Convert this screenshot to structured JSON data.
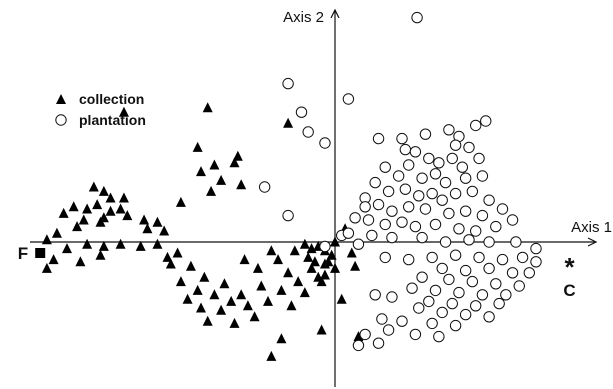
{
  "chart_data": {
    "type": "scatter",
    "xlabel": "Axis 1",
    "ylabel": "Axis 2",
    "grid": false,
    "legend": {
      "placement": "top-left",
      "entries": [
        {
          "name": "collection",
          "marker": "triangle",
          "color": "#000000"
        },
        {
          "name": "plantation",
          "marker": "circle",
          "color": "#ffffff"
        }
      ]
    },
    "poles": [
      {
        "label": "F",
        "marker": "square",
        "x": -8.8,
        "y": -0.25
      },
      {
        "label": "C",
        "marker": "asterisk",
        "x": 7.0,
        "y": -0.55
      }
    ],
    "series": [
      {
        "name": "collection",
        "points": [
          [
            -6.3,
            2.95
          ],
          [
            -3.8,
            3.05
          ],
          [
            -1.4,
            2.7
          ],
          [
            -4.1,
            2.15
          ],
          [
            -3.6,
            1.75
          ],
          [
            -3.0,
            1.8
          ],
          [
            -2.9,
            1.95
          ],
          [
            -3.4,
            1.4
          ],
          [
            -4.0,
            1.6
          ],
          [
            -3.7,
            1.15
          ],
          [
            -2.8,
            1.3
          ],
          [
            -4.6,
            0.9
          ],
          [
            -7.2,
            1.25
          ],
          [
            -6.9,
            1.15
          ],
          [
            -7.1,
            0.85
          ],
          [
            -6.7,
            1.0
          ],
          [
            -7.4,
            0.75
          ],
          [
            -6.3,
            1.0
          ],
          [
            -6.9,
            0.55
          ],
          [
            -7.8,
            0.8
          ],
          [
            -6.7,
            0.7
          ],
          [
            -6.4,
            0.75
          ],
          [
            -8.1,
            0.65
          ],
          [
            -6.2,
            0.6
          ],
          [
            -7.5,
            0.5
          ],
          [
            -7.0,
            0.45
          ],
          [
            -5.7,
            0.5
          ],
          [
            -5.3,
            0.45
          ],
          [
            -7.7,
            0.35
          ],
          [
            -8.3,
            0.2
          ],
          [
            -5.6,
            0.3
          ],
          [
            -5.1,
            0.25
          ],
          [
            -8.6,
            0.05
          ],
          [
            -8.0,
            -0.15
          ],
          [
            -7.4,
            -0.05
          ],
          [
            -6.9,
            -0.1
          ],
          [
            -6.4,
            -0.05
          ],
          [
            -5.8,
            -0.1
          ],
          [
            -5.3,
            -0.05
          ],
          [
            -8.4,
            -0.4
          ],
          [
            -7.6,
            -0.45
          ],
          [
            -7.0,
            -0.3
          ],
          [
            -8.6,
            -0.6
          ],
          [
            -5.0,
            -0.35
          ],
          [
            -4.3,
            -0.55
          ],
          [
            -4.9,
            -0.5
          ],
          [
            -3.9,
            -0.8
          ],
          [
            -4.6,
            -0.9
          ],
          [
            -3.3,
            -0.95
          ],
          [
            -4.1,
            -1.1
          ],
          [
            -3.6,
            -1.2
          ],
          [
            -4.4,
            -1.3
          ],
          [
            -2.8,
            -1.2
          ],
          [
            -3.1,
            -1.35
          ],
          [
            -4.0,
            -1.5
          ],
          [
            -3.4,
            -1.55
          ],
          [
            -2.6,
            -1.45
          ],
          [
            -3.8,
            -1.8
          ],
          [
            -3.0,
            -1.85
          ],
          [
            -2.3,
            -0.6
          ],
          [
            -2.7,
            -0.4
          ],
          [
            -4.7,
            -0.25
          ],
          [
            -2.2,
            -1.0
          ],
          [
            -2.0,
            -1.35
          ],
          [
            -1.7,
            -0.4
          ],
          [
            -1.4,
            -0.7
          ],
          [
            -1.6,
            -1.1
          ],
          [
            -1.1,
            -0.9
          ],
          [
            -1.3,
            -1.45
          ],
          [
            -0.9,
            -1.15
          ],
          [
            -0.7,
            -0.6
          ],
          [
            -0.5,
            -0.8
          ],
          [
            -0.8,
            -0.35
          ],
          [
            -0.3,
            -0.5
          ],
          [
            -0.4,
            -0.9
          ],
          [
            -1.9,
            -0.2
          ],
          [
            -1.2,
            -0.2
          ],
          [
            -2.4,
            -1.7
          ],
          [
            -0.9,
            -0.05
          ],
          [
            -0.7,
            -0.15
          ],
          [
            -0.5,
            -0.1
          ],
          [
            -0.3,
            -0.2
          ],
          [
            -0.2,
            -0.45
          ],
          [
            0.0,
            -0.6
          ],
          [
            -0.1,
            -0.3
          ],
          [
            -0.6,
            -0.45
          ],
          [
            -0.3,
            -0.75
          ],
          [
            0.3,
            0.3
          ],
          [
            0.5,
            -0.25
          ],
          [
            0.6,
            -0.55
          ],
          [
            0.2,
            -1.3
          ],
          [
            0.0,
            0.0
          ],
          [
            -0.4,
            -2.0
          ],
          [
            -1.6,
            -2.2
          ],
          [
            0.7,
            -2.15
          ],
          [
            -1.9,
            -2.6
          ]
        ]
      },
      {
        "name": "plantation",
        "points": [
          [
            2.45,
            5.1
          ],
          [
            -1.4,
            3.6
          ],
          [
            0.4,
            3.25
          ],
          [
            -1.0,
            2.95
          ],
          [
            -0.8,
            2.5
          ],
          [
            -0.3,
            2.25
          ],
          [
            2.1,
            2.1
          ],
          [
            -2.1,
            1.25
          ],
          [
            -1.4,
            0.6
          ],
          [
            0.9,
            1.0
          ],
          [
            0.2,
            0.15
          ],
          [
            -0.3,
            -0.1
          ],
          [
            1.3,
            2.35
          ],
          [
            2.0,
            2.35
          ],
          [
            2.7,
            2.45
          ],
          [
            3.4,
            2.55
          ],
          [
            3.7,
            2.4
          ],
          [
            4.2,
            2.65
          ],
          [
            4.5,
            2.75
          ],
          [
            3.6,
            2.2
          ],
          [
            4.0,
            2.15
          ],
          [
            2.4,
            2.05
          ],
          [
            2.2,
            1.75
          ],
          [
            2.8,
            1.9
          ],
          [
            3.1,
            1.8
          ],
          [
            3.5,
            1.9
          ],
          [
            3.8,
            1.7
          ],
          [
            4.3,
            1.9
          ],
          [
            1.5,
            1.7
          ],
          [
            1.9,
            1.5
          ],
          [
            2.6,
            1.45
          ],
          [
            3.0,
            1.55
          ],
          [
            3.3,
            1.35
          ],
          [
            3.9,
            1.45
          ],
          [
            4.4,
            1.5
          ],
          [
            1.2,
            1.35
          ],
          [
            1.6,
            1.15
          ],
          [
            2.1,
            1.2
          ],
          [
            2.5,
            1.05
          ],
          [
            2.9,
            1.1
          ],
          [
            3.2,
            0.95
          ],
          [
            3.6,
            1.1
          ],
          [
            4.1,
            1.15
          ],
          [
            4.6,
            0.95
          ],
          [
            0.9,
            0.8
          ],
          [
            1.3,
            0.85
          ],
          [
            1.7,
            0.7
          ],
          [
            2.2,
            0.8
          ],
          [
            2.7,
            0.75
          ],
          [
            3.4,
            0.65
          ],
          [
            3.9,
            0.7
          ],
          [
            4.4,
            0.6
          ],
          [
            5.0,
            0.75
          ],
          [
            5.3,
            0.5
          ],
          [
            0.6,
            0.55
          ],
          [
            1.0,
            0.5
          ],
          [
            1.5,
            0.4
          ],
          [
            2.0,
            0.45
          ],
          [
            2.4,
            0.35
          ],
          [
            3.0,
            0.4
          ],
          [
            3.7,
            0.3
          ],
          [
            4.2,
            0.25
          ],
          [
            4.8,
            0.35
          ],
          [
            0.4,
            0.2
          ],
          [
            1.1,
            0.15
          ],
          [
            1.7,
            0.1
          ],
          [
            2.6,
            0.1
          ],
          [
            3.3,
            0.0
          ],
          [
            4.0,
            0.05
          ],
          [
            4.6,
            0.0
          ],
          [
            5.4,
            0.0
          ],
          [
            0.7,
            -0.05
          ],
          [
            1.5,
            -0.35
          ],
          [
            2.2,
            -0.4
          ],
          [
            2.9,
            -0.35
          ],
          [
            3.6,
            -0.3
          ],
          [
            4.3,
            -0.35
          ],
          [
            5.0,
            -0.4
          ],
          [
            5.6,
            -0.35
          ],
          [
            6.0,
            -0.45
          ],
          [
            3.2,
            -0.6
          ],
          [
            3.9,
            -0.65
          ],
          [
            4.6,
            -0.6
          ],
          [
            5.3,
            -0.7
          ],
          [
            5.8,
            -0.7
          ],
          [
            2.6,
            -0.8
          ],
          [
            3.4,
            -0.85
          ],
          [
            4.1,
            -0.9
          ],
          [
            4.8,
            -0.95
          ],
          [
            5.5,
            -1.0
          ],
          [
            2.3,
            -1.05
          ],
          [
            3.0,
            -1.1
          ],
          [
            3.7,
            -1.15
          ],
          [
            4.4,
            -1.2
          ],
          [
            5.1,
            -1.2
          ],
          [
            1.2,
            -1.2
          ],
          [
            1.7,
            -1.25
          ],
          [
            2.8,
            -1.35
          ],
          [
            3.5,
            -1.4
          ],
          [
            4.2,
            -1.45
          ],
          [
            4.9,
            -1.4
          ],
          [
            2.5,
            -1.5
          ],
          [
            3.2,
            -1.6
          ],
          [
            3.9,
            -1.65
          ],
          [
            4.6,
            -1.7
          ],
          [
            1.4,
            -1.75
          ],
          [
            2.0,
            -1.8
          ],
          [
            2.9,
            -1.85
          ],
          [
            3.6,
            -1.9
          ],
          [
            0.9,
            -2.1
          ],
          [
            1.6,
            -2.0
          ],
          [
            2.4,
            -2.1
          ],
          [
            3.1,
            -2.15
          ],
          [
            0.7,
            -2.35
          ],
          [
            1.3,
            -2.3
          ],
          [
            6.0,
            -0.15
          ]
        ]
      }
    ],
    "xlim": [
      -9.5,
      7.8
    ],
    "ylim": [
      -2.9,
      5.4
    ]
  }
}
